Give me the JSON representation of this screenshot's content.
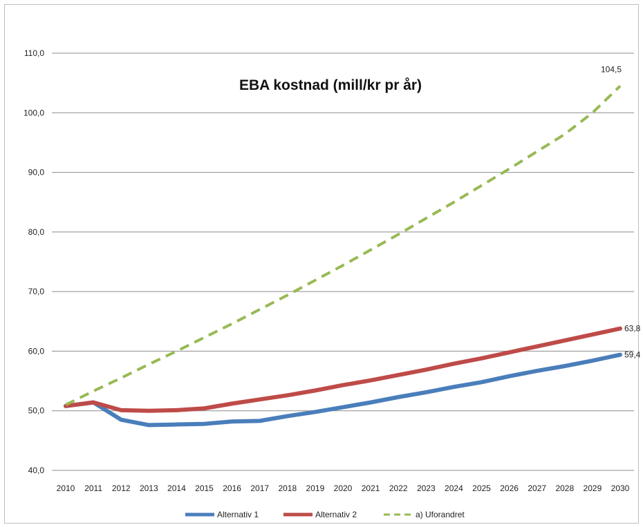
{
  "chart_data": {
    "type": "line",
    "title": "EBA kostnad  (mill/kr pr år)",
    "xlabel": "",
    "ylabel": "",
    "x": [
      "2010",
      "2011",
      "2012",
      "2013",
      "2014",
      "2015",
      "2016",
      "2017",
      "2018",
      "2019",
      "2020",
      "2021",
      "2022",
      "2023",
      "2024",
      "2025",
      "2026",
      "2027",
      "2028",
      "2029",
      "2030"
    ],
    "ylim": [
      40,
      110
    ],
    "yticks": [
      "40,0",
      "50,0",
      "60,0",
      "70,0",
      "80,0",
      "90,0",
      "100,0",
      "110,0"
    ],
    "ytick_values": [
      40,
      50,
      60,
      70,
      80,
      90,
      100,
      110
    ],
    "grid": true,
    "legend_position": "bottom",
    "series": [
      {
        "name": "Alternativ 1",
        "color": "#4a7ebb",
        "style": "solid",
        "values": [
          50.8,
          51.4,
          48.5,
          47.6,
          47.7,
          47.8,
          48.2,
          48.3,
          49.1,
          49.8,
          50.6,
          51.4,
          52.3,
          53.1,
          54.0,
          54.8,
          55.8,
          56.7,
          57.5,
          58.4,
          59.4
        ],
        "end_label": "59,4"
      },
      {
        "name": "Alternativ 2",
        "color": "#be4b48",
        "style": "solid",
        "values": [
          50.8,
          51.4,
          50.1,
          50.0,
          50.1,
          50.4,
          51.2,
          51.9,
          52.6,
          53.4,
          54.3,
          55.1,
          56.0,
          56.9,
          57.9,
          58.8,
          59.8,
          60.8,
          61.8,
          62.8,
          63.8
        ],
        "end_label": "63,8"
      },
      {
        "name": "a) Uforandret",
        "color": "#98b954",
        "style": "dashed",
        "values": [
          51.0,
          53.3,
          55.5,
          57.8,
          60.0,
          62.3,
          64.6,
          67.0,
          69.4,
          71.9,
          74.4,
          77.0,
          79.6,
          82.3,
          85.0,
          87.8,
          90.6,
          93.5,
          96.4,
          100.0,
          104.5
        ],
        "end_label": "104,5"
      }
    ]
  }
}
